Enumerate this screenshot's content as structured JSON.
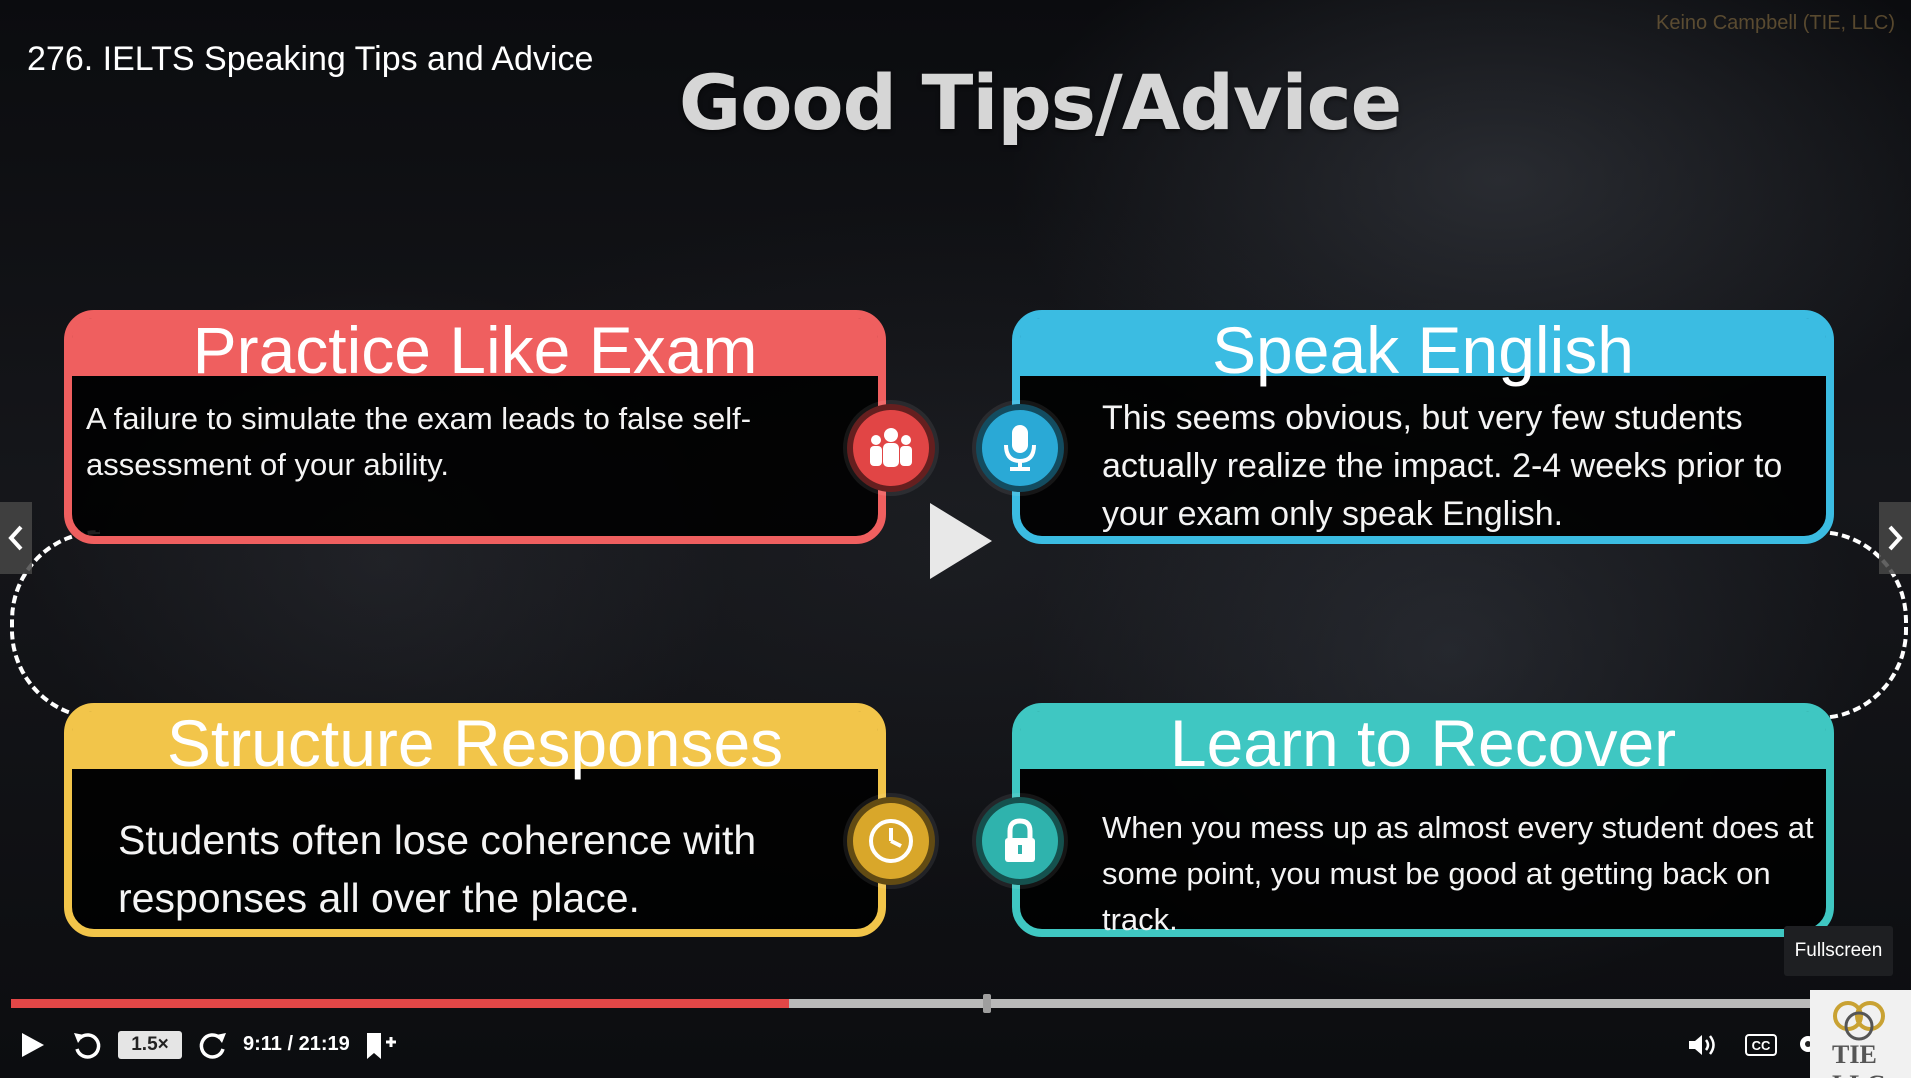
{
  "video": {
    "title": "276. IELTS Speaking Tips and Advice",
    "watermark": "Keino Campbell (TIE, LLC)"
  },
  "slide": {
    "title": "Good Tips/Advice",
    "cards": [
      {
        "heading": "Practice Like Exam",
        "text": "A failure to simulate the exam leads to false self-assessment of your ability.",
        "icon": "group-people-icon",
        "color": "#ef5f5f"
      },
      {
        "heading": "Speak English",
        "text": "This seems obvious, but very few students actually realize the impact. 2-4 weeks prior to your exam only speak English.",
        "icon": "microphone-icon",
        "color": "#3bbce2"
      },
      {
        "heading": "Structure Responses",
        "text": "Students often lose coherence with responses all over the place.",
        "icon": "clock-icon",
        "color": "#f2c54a"
      },
      {
        "heading": "Learn to Recover",
        "text": "When you mess up as almost every student does at some point, you must be good at getting back on track.",
        "icon": "lock-icon",
        "color": "#3fc7c2"
      }
    ]
  },
  "player": {
    "speed": "1.5×",
    "time": "9:11 / 21:19",
    "progress_fraction": 0.432,
    "buffered_marker_fraction": 0.54,
    "tooltip": "Fullscreen",
    "cc_label": "CC",
    "logo_text": "TIE LLC",
    "accent_color": "#e24747"
  }
}
